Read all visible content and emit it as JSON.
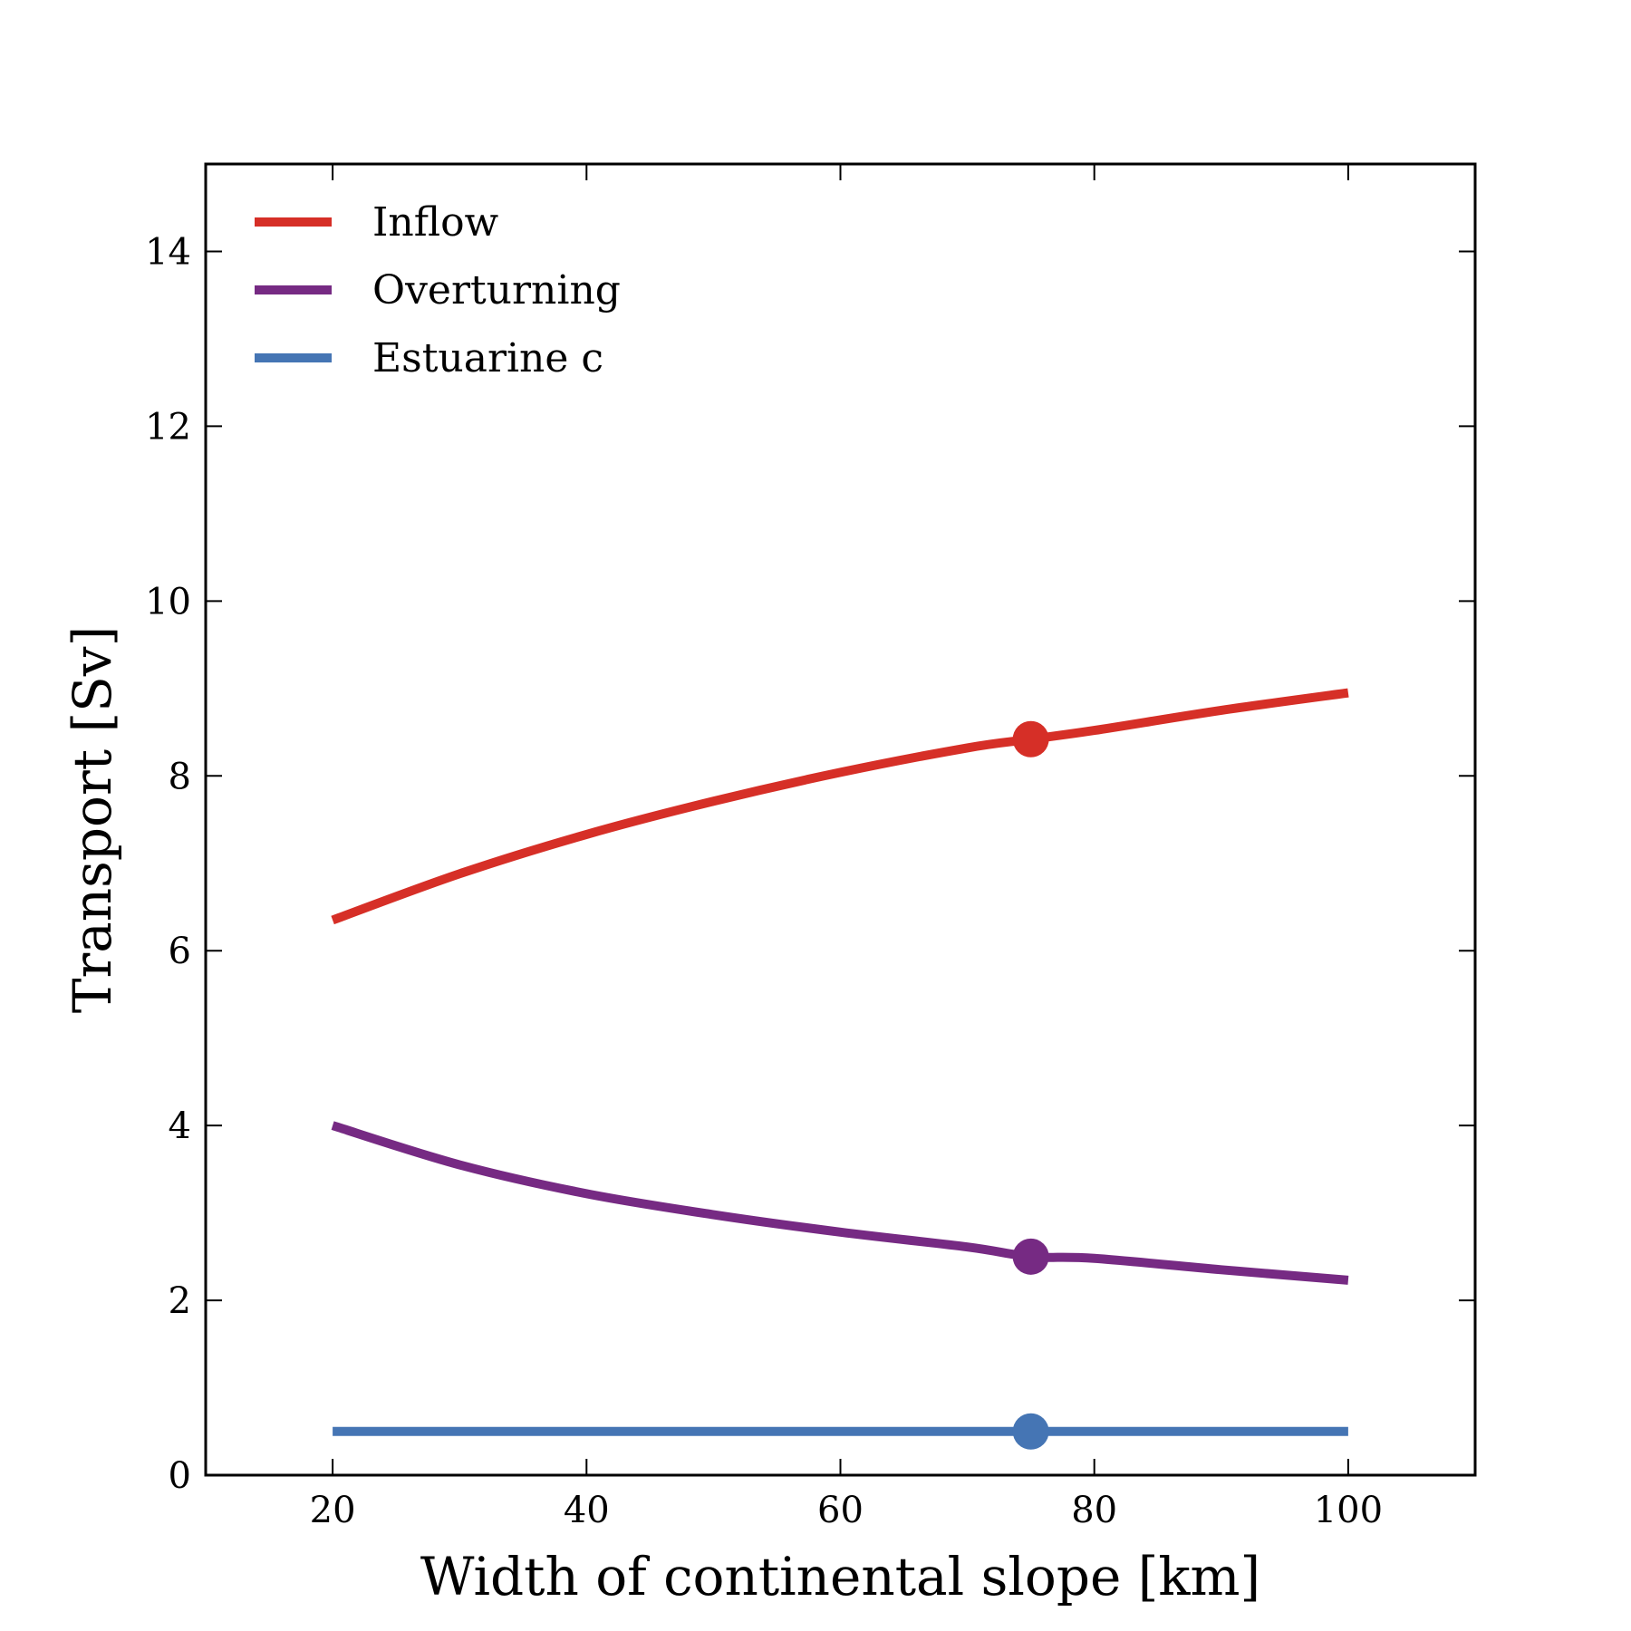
{
  "chart_data": {
    "type": "line",
    "title": "",
    "xlabel": "Width of continental slope [km]",
    "ylabel": "Transport [Sv]",
    "xlim": [
      10,
      110
    ],
    "ylim": [
      0,
      15
    ],
    "xticks": [
      20,
      40,
      60,
      80,
      100
    ],
    "yticks": [
      0,
      2,
      4,
      6,
      8,
      10,
      12,
      14
    ],
    "grid": false,
    "legend": {
      "position": "top-left"
    },
    "x": [
      20,
      30,
      40,
      50,
      60,
      70,
      75,
      80,
      90,
      100
    ],
    "series": [
      {
        "name": "Inflow",
        "color": "#d62f27",
        "values": [
          6.35,
          6.88,
          7.33,
          7.71,
          8.04,
          8.32,
          8.42,
          8.52,
          8.75,
          8.95
        ]
      },
      {
        "name": "Overturning",
        "color": "#762a83",
        "values": [
          4.0,
          3.55,
          3.22,
          2.98,
          2.78,
          2.61,
          2.5,
          2.48,
          2.35,
          2.23
        ]
      },
      {
        "name": "Estuarine c",
        "color": "#4575b4",
        "values": [
          0.5,
          0.5,
          0.5,
          0.5,
          0.5,
          0.5,
          0.5,
          0.5,
          0.5,
          0.5
        ]
      }
    ],
    "markers": [
      {
        "series": "Inflow",
        "x": 75,
        "y": 8.42
      },
      {
        "series": "Overturning",
        "x": 75,
        "y": 2.5
      },
      {
        "series": "Estuarine c",
        "x": 75,
        "y": 0.5
      }
    ]
  }
}
